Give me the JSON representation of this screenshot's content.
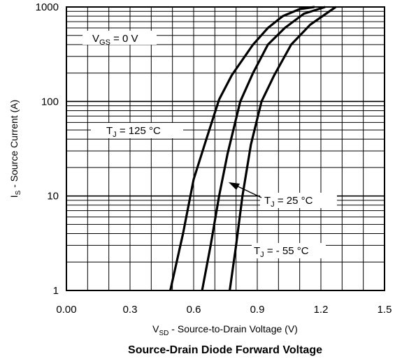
{
  "chart_data": {
    "type": "line",
    "title": "Source-Drain Diode Forward Voltage",
    "xlabel": {
      "main": "V",
      "sub": "SD",
      "rest": " - Source-to-Drain Voltage (V)"
    },
    "ylabel": {
      "main": "I",
      "sub": "S",
      "rest": " - Source Current (A)"
    },
    "x_scale": "linear",
    "y_scale": "log",
    "xlim": [
      0.0,
      1.5
    ],
    "ylim": [
      1,
      1000
    ],
    "x_ticks": [
      "0.00",
      "0.3",
      "0.6",
      "0.9",
      "1.2",
      "1.5"
    ],
    "y_ticks": [
      "1",
      "10",
      "100",
      "1000"
    ],
    "grid": true,
    "series": [
      {
        "id": "tj125",
        "x": [
          0.49,
          0.55,
          0.6,
          0.66,
          0.72,
          0.78,
          0.88,
          0.95,
          1.02,
          1.1,
          1.17
        ],
        "y": [
          1,
          4,
          15,
          40,
          105,
          190,
          400,
          600,
          800,
          950,
          1000
        ]
      },
      {
        "id": "tj25",
        "x": [
          0.64,
          0.68,
          0.72,
          0.76,
          0.82,
          0.88,
          0.95,
          1.03,
          1.12,
          1.22
        ],
        "y": [
          1,
          3,
          10,
          28,
          100,
          200,
          400,
          600,
          850,
          1000
        ]
      },
      {
        "id": "tjm55",
        "x": [
          0.77,
          0.8,
          0.83,
          0.87,
          0.92,
          0.98,
          1.06,
          1.15,
          1.27
        ],
        "y": [
          1,
          3,
          10,
          35,
          100,
          190,
          400,
          650,
          1000
        ]
      }
    ],
    "annotations": {
      "vgs": {
        "main": "V",
        "sub": "GS",
        "rest": " = 0 V"
      },
      "tj125": {
        "main": "T",
        "sub": "J",
        "rest": " = 125 °C"
      },
      "tj25": {
        "main": "T",
        "sub": "J",
        "rest": " = 25 °C"
      },
      "tjm55": {
        "main": "T",
        "sub": "J",
        "rest": " = - 55 °C"
      }
    }
  }
}
